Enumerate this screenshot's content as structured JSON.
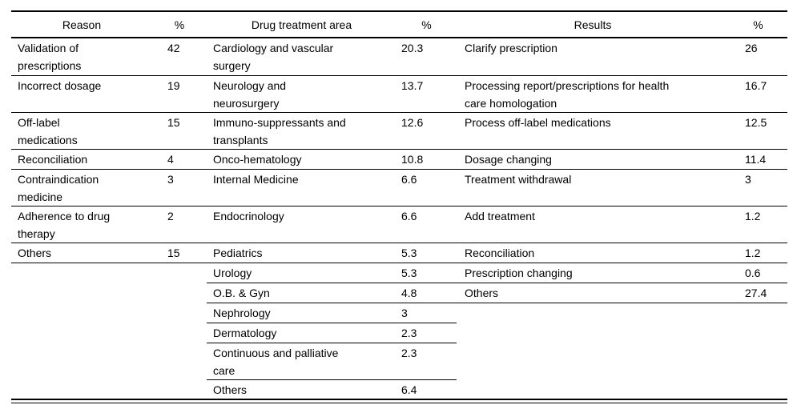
{
  "colors": {
    "background": "#ffffff",
    "text": "#000000",
    "rule": "#000000"
  },
  "table": {
    "columns": [
      {
        "label": "Reason"
      },
      {
        "label": "%"
      },
      {
        "label": "Drug treatment area"
      },
      {
        "label": "%"
      },
      {
        "label": "Results"
      },
      {
        "label": "%"
      }
    ],
    "rows": [
      {
        "reason": "Validation of\nprescriptions",
        "reason_pct": "42",
        "area": "Cardiology and vascular\nsurgery",
        "area_pct": "20.3",
        "result": "Clarify prescription",
        "result_pct": "26"
      },
      {
        "reason": "Incorrect dosage",
        "reason_pct": "19",
        "area": "Neurology and\nneurosurgery",
        "area_pct": "13.7",
        "result": "Processing report/prescriptions for health\ncare homologation",
        "result_pct": "16.7"
      },
      {
        "reason": "Off-label\nmedications",
        "reason_pct": "15",
        "area": "Immuno-suppressants and\ntransplants",
        "area_pct": "12.6",
        "result": "Process off-label medications",
        "result_pct": "12.5"
      },
      {
        "reason": "Reconciliation",
        "reason_pct": "4",
        "area": "Onco-hematology",
        "area_pct": "10.8",
        "result": "Dosage changing",
        "result_pct": "11.4"
      },
      {
        "reason": "Contraindication\nmedicine",
        "reason_pct": "3",
        "area": "Internal Medicine",
        "area_pct": "6.6",
        "result": "Treatment withdrawal",
        "result_pct": "3"
      },
      {
        "reason": "Adherence to drug\ntherapy",
        "reason_pct": "2",
        "area": "Endocrinology",
        "area_pct": "6.6",
        "result": "Add treatment",
        "result_pct": "1.2"
      },
      {
        "reason": "Others",
        "reason_pct": "15",
        "area": "Pediatrics",
        "area_pct": "5.3",
        "result": "Reconciliation",
        "result_pct": "1.2"
      },
      {
        "reason": "",
        "reason_pct": "",
        "area": "Urology",
        "area_pct": "5.3",
        "result": "Prescription changing",
        "result_pct": "0.6"
      },
      {
        "reason": "",
        "reason_pct": "",
        "area": "O.B. & Gyn",
        "area_pct": "4.8",
        "result": "Others",
        "result_pct": "27.4"
      },
      {
        "reason": "",
        "reason_pct": "",
        "area": "Nephrology",
        "area_pct": "3",
        "result": "",
        "result_pct": ""
      },
      {
        "reason": "",
        "reason_pct": "",
        "area": "Dermatology",
        "area_pct": "2.3",
        "result": "",
        "result_pct": ""
      },
      {
        "reason": "",
        "reason_pct": "",
        "area": "Continuous and palliative\ncare",
        "area_pct": "2.3",
        "result": "",
        "result_pct": ""
      },
      {
        "reason": "",
        "reason_pct": "",
        "area": "Others",
        "area_pct": "6.4",
        "result": "",
        "result_pct": ""
      }
    ]
  }
}
